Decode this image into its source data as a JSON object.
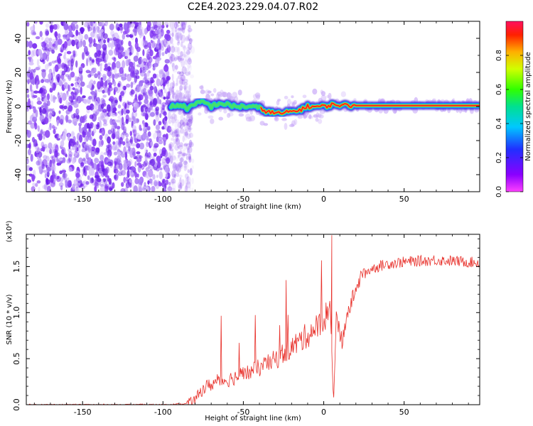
{
  "figure_title": "C2E4.2023.229.04.07.R02",
  "colors": {
    "snr_line": "#e8302a",
    "axis": "#000000",
    "ridge_core": "#ff2020",
    "ridge_mid": "#30d060",
    "ridge_outer": "#3010e0",
    "noise": "#7a2cf0"
  },
  "chart_data": [
    {
      "type": "heatmap",
      "title": "C2E4.2023.229.04.07.R02",
      "xlabel": "Height of straight line (km)",
      "ylabel": "Frequency (Hz)",
      "xlim": [
        -185,
        97
      ],
      "ylim": [
        -50,
        50
      ],
      "x_ticks": [
        -150,
        -100,
        -50,
        0,
        50
      ],
      "x_tick_labels": [
        "-150",
        "-100",
        "-50",
        "0",
        "50"
      ],
      "y_ticks": [
        -40,
        -20,
        0,
        20,
        40
      ],
      "y_tick_labels": [
        "-40",
        "-20",
        "0",
        "20",
        "40"
      ],
      "noise_region_x": [
        -185,
        -85
      ],
      "ridge": {
        "x": [
          -95,
          -90,
          -85,
          -80,
          -75,
          -70,
          -65,
          -60,
          -55,
          -50,
          -45,
          -40,
          -35,
          -30,
          -25,
          -20,
          -15,
          -10,
          -5,
          0,
          5,
          10,
          15,
          20,
          30,
          40,
          50,
          60,
          70,
          80,
          97
        ],
        "freq": [
          0,
          1,
          -1,
          1,
          3,
          0,
          2,
          1,
          0,
          0,
          0,
          -1,
          -3,
          -4,
          -4,
          -3,
          -2,
          0,
          0,
          0,
          1,
          1,
          0.5,
          0.5,
          0.5,
          0.5,
          0.5,
          0.5,
          0.5,
          0.5,
          0.5
        ]
      },
      "colorbar": {
        "label": "Normalized spectral amplitude",
        "range": [
          0.0,
          1.0
        ],
        "ticks": [
          0.0,
          0.2,
          0.4,
          0.6,
          0.8
        ],
        "tick_labels": [
          "0.0",
          "0.2",
          "0.4",
          "0.6",
          "0.8"
        ]
      }
    },
    {
      "type": "line",
      "xlabel": "Height of straight line (km)",
      "ylabel": "SNR (10 * v/v)",
      "scale_label": "(x10⁴)",
      "xlim": [
        -185,
        97
      ],
      "ylim": [
        0,
        1.85
      ],
      "x_ticks": [
        -150,
        -100,
        -50,
        0,
        50
      ],
      "x_tick_labels": [
        "-150",
        "-100",
        "-50",
        "0",
        "50"
      ],
      "y_ticks": [
        0.0,
        0.5,
        1.0,
        1.5
      ],
      "y_tick_labels": [
        "0.0",
        "0.5",
        "1.0",
        "1.5"
      ],
      "series": [
        {
          "name": "SNR",
          "x": [
            -185,
            -150,
            -100,
            -85,
            -80,
            -75,
            -70,
            -65,
            -60,
            -55,
            -50,
            -45,
            -40,
            -35,
            -30,
            -25,
            -20,
            -15,
            -10,
            -5,
            0,
            2,
            4,
            6,
            8,
            10,
            12,
            15,
            18,
            20,
            25,
            30,
            40,
            50,
            60,
            70,
            80,
            90,
            97
          ],
          "values": [
            0.0,
            0.0,
            0.0,
            0.01,
            0.05,
            0.18,
            0.22,
            0.26,
            0.27,
            0.3,
            0.33,
            0.36,
            0.4,
            0.44,
            0.49,
            0.56,
            0.62,
            0.69,
            0.76,
            0.83,
            0.9,
            1.0,
            1.05,
            0.05,
            1.05,
            0.72,
            0.7,
            1.0,
            1.15,
            1.3,
            1.42,
            1.48,
            1.53,
            1.55,
            1.56,
            1.57,
            1.56,
            1.55,
            1.54
          ]
        }
      ]
    }
  ]
}
